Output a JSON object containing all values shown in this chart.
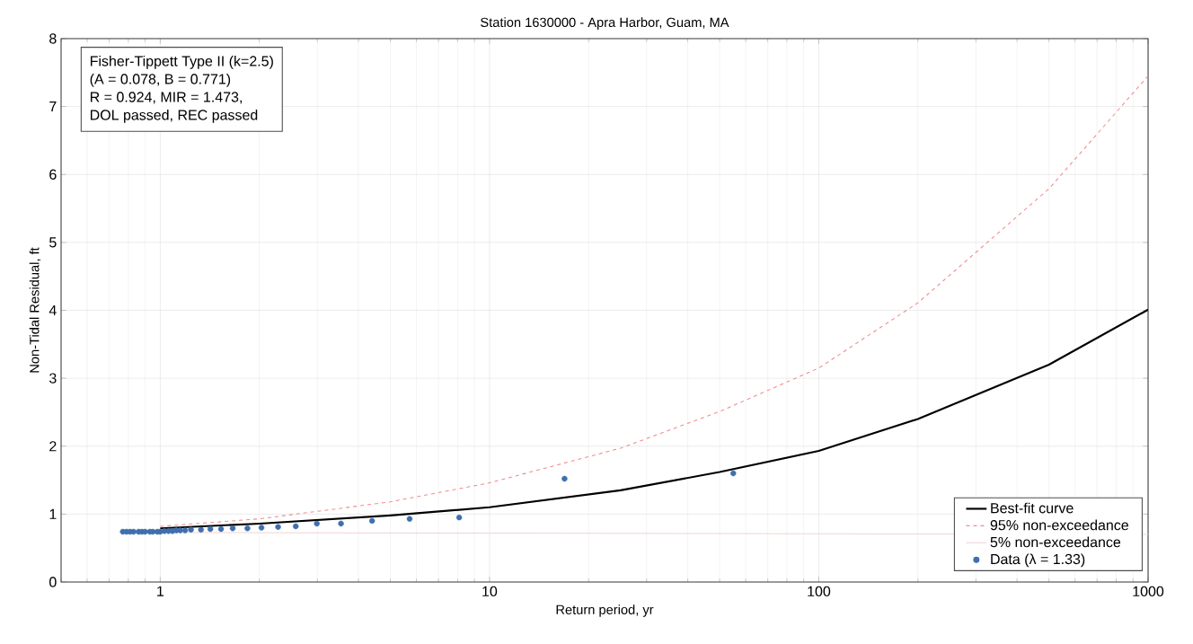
{
  "chart_data": {
    "type": "line",
    "title": "Station 1630000 - Apra Harbor, Guam, MA",
    "xlabel": "Return period, yr",
    "ylabel": "Non-Tidal Residual, ft",
    "log": "x",
    "xlim": [
      0.5,
      1000
    ],
    "xticks": [
      1,
      10,
      100,
      1000
    ],
    "ylim": [
      0,
      8
    ],
    "yticks": [
      0,
      1,
      2,
      3,
      4,
      5,
      6,
      7,
      8
    ],
    "grid": true,
    "legend": "bottom right",
    "annotations": [
      "Fisher-Tippett Type II (k=2.5)",
      "(A = 0.078, B = 0.771)",
      "R = 0.924, MIR = 1.473,",
      "DOL passed, REC passed"
    ],
    "series": [
      {
        "name": "Best-fit curve",
        "type": "line",
        "line_style": "solid",
        "color": "#000000",
        "x": [
          1,
          2,
          5,
          10,
          25,
          50,
          100,
          200,
          500,
          1000
        ],
        "values": [
          0.79,
          0.86,
          0.98,
          1.1,
          1.35,
          1.62,
          1.93,
          2.4,
          3.2,
          4.01
        ]
      },
      {
        "name": "95% non-exceedance",
        "type": "line",
        "line_style": "dashed",
        "color": "#f28a8a",
        "x": [
          1,
          2,
          5,
          10,
          25,
          50,
          100,
          200,
          500,
          1000
        ],
        "values": [
          0.82,
          0.93,
          1.18,
          1.46,
          1.97,
          2.51,
          3.15,
          4.11,
          5.79,
          7.45
        ]
      },
      {
        "name": "5% non-exceedance",
        "type": "line",
        "line_style": "solid",
        "color": "#f0d4d4",
        "x": [
          1,
          10,
          100,
          1000
        ],
        "values": [
          0.73,
          0.72,
          0.71,
          0.7
        ]
      },
      {
        "name": "Data (λ = 1.33)",
        "type": "scatter",
        "marker": "circle",
        "color": "#3f6fad",
        "x": [
          0.77,
          0.79,
          0.81,
          0.83,
          0.86,
          0.88,
          0.9,
          0.93,
          0.95,
          0.98,
          1.0,
          1.03,
          1.06,
          1.09,
          1.12,
          1.15,
          1.19,
          1.24,
          1.33,
          1.42,
          1.53,
          1.66,
          1.84,
          2.03,
          2.28,
          2.58,
          2.99,
          3.54,
          4.4,
          5.72,
          8.09,
          16.9,
          55
        ],
        "values": [
          0.74,
          0.74,
          0.74,
          0.74,
          0.74,
          0.74,
          0.74,
          0.74,
          0.74,
          0.74,
          0.74,
          0.75,
          0.75,
          0.75,
          0.76,
          0.76,
          0.76,
          0.77,
          0.77,
          0.78,
          0.78,
          0.79,
          0.79,
          0.8,
          0.81,
          0.82,
          0.86,
          0.86,
          0.9,
          0.93,
          0.95,
          1.52,
          1.6
        ]
      }
    ]
  }
}
